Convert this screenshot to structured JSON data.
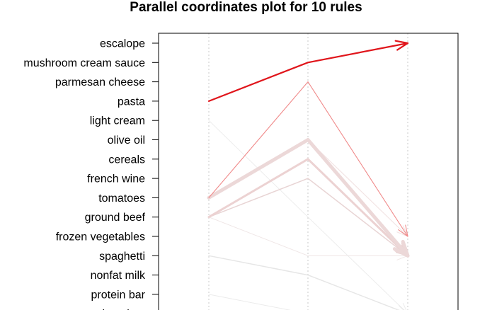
{
  "chart_data": {
    "type": "parallel-coordinates",
    "title": "Parallel coordinates plot for 10 rules",
    "items": [
      "escalope",
      "mushroom cream sauce",
      "parmesan cheese",
      "pasta",
      "light cream",
      "olive oil",
      "cereals",
      "french wine",
      "tomatoes",
      "ground beef",
      "frozen vegetables",
      "spaghetti",
      "nonfat milk",
      "protein bar",
      "chocolate"
    ],
    "axes_count": 3,
    "rules": [
      {
        "path": [
          "pasta",
          "mushroom cream sauce",
          "escalope"
        ],
        "color": "#e0151b",
        "width": 2.2
      },
      {
        "path": [
          "tomatoes",
          "parmesan cheese",
          "frozen vegetables"
        ],
        "color": "#f08a8a",
        "width": 1.1
      },
      {
        "path": [
          "tomatoes",
          "olive oil",
          "spaghetti"
        ],
        "color": "#ecd8d8",
        "width": 5
      },
      {
        "path": [
          "ground beef",
          "cereals",
          "spaghetti"
        ],
        "color": "#ecd2d2",
        "width": 3
      },
      {
        "path": [
          "ground beef",
          "french wine",
          "spaghetti"
        ],
        "color": "#e8d4d4",
        "width": 1.5
      },
      {
        "path": [
          "tomatoes",
          "olive oil",
          "frozen vegetables"
        ],
        "color": "#f2e4e4",
        "width": 1.2
      },
      {
        "path": [
          "light cream",
          "ground beef",
          "chocolate"
        ],
        "color": "#ececec",
        "width": 1
      },
      {
        "path": [
          "spaghetti",
          "nonfat milk",
          "chocolate"
        ],
        "color": "#e6e6e6",
        "width": 1.5
      },
      {
        "path": [
          "protein bar",
          "chocolate",
          "chocolate"
        ],
        "color": "#ebebeb",
        "width": 1
      },
      {
        "path": [
          "ground beef",
          "spaghetti",
          "spaghetti"
        ],
        "color": "#efe6e6",
        "width": 1
      }
    ],
    "grid": "vertical dotted lines at each axis"
  }
}
